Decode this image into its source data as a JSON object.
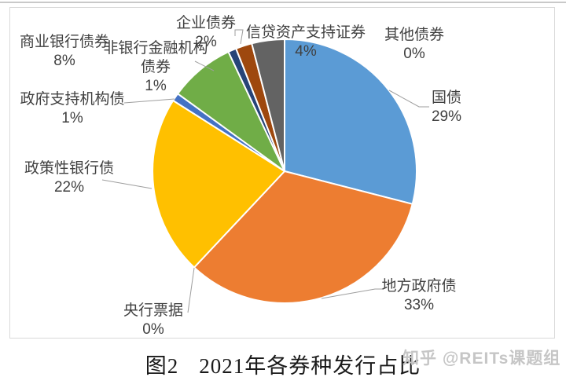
{
  "figure": {
    "caption": {
      "figure_label": "图2",
      "title": "2021年各券种发行占比"
    },
    "watermark": "知乎 @REITs课题组"
  },
  "chart_data": {
    "type": "pie",
    "title": "图2 2021年各券种发行占比",
    "unit": "%",
    "start_angle_deg": 0,
    "direction": "clockwise",
    "legend": "none",
    "categories": [
      "国债",
      "地方政府债",
      "央行票据",
      "政策性银行债",
      "政府支持机构债",
      "商业银行债券",
      "非银行金融机构债券",
      "企业债券",
      "信贷资产支持证券",
      "其他债券"
    ],
    "values": [
      29,
      33,
      0,
      22,
      1,
      8,
      1,
      2,
      4,
      0
    ],
    "value_labels": [
      "29%",
      "33%",
      "0%",
      "22%",
      "1%",
      "8%",
      "1%",
      "2%",
      "4%",
      "0%"
    ],
    "colors": [
      "#5B9BD5",
      "#ED7D31",
      "#A5A5A5",
      "#FFC000",
      "#4472C4",
      "#70AD47",
      "#264478",
      "#9E480E",
      "#636363",
      "#997300"
    ],
    "label_lines": [
      [
        "国债"
      ],
      [
        "地方政府债"
      ],
      [
        "央行票据"
      ],
      [
        "政策性银行债"
      ],
      [
        "政府支持机构债"
      ],
      [
        "商业银行债券"
      ],
      [
        "非银行金融机构",
        "债券"
      ],
      [
        "企业债券"
      ],
      [
        "信贷资产支持证券"
      ],
      [
        "其他债券"
      ]
    ],
    "slice_border_color": "#FFFFFF",
    "leader_line_color": "#9E9E9E",
    "label_text_color": "#404040"
  }
}
